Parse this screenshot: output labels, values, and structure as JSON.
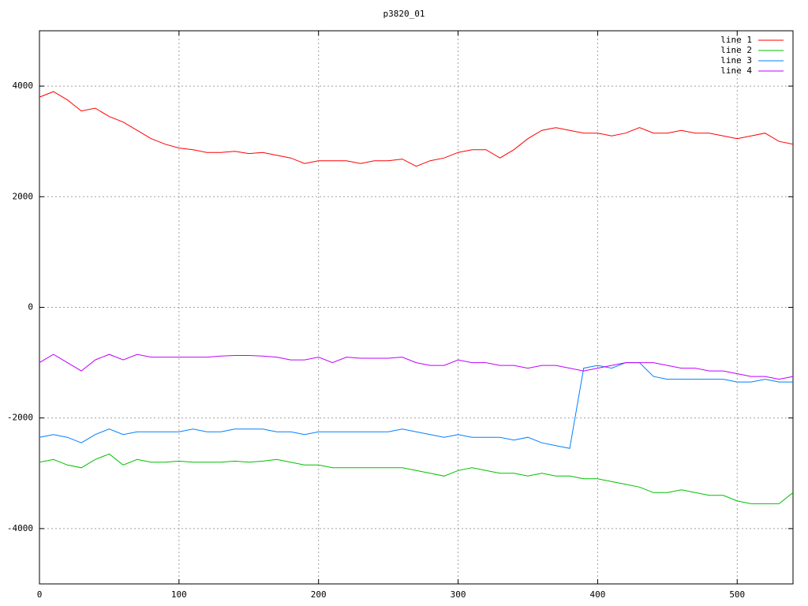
{
  "chart_data": {
    "type": "line",
    "title": "p3820_01",
    "x": [
      0,
      10,
      20,
      30,
      40,
      50,
      60,
      70,
      80,
      90,
      100,
      110,
      120,
      130,
      140,
      150,
      160,
      170,
      180,
      190,
      200,
      210,
      220,
      230,
      240,
      250,
      260,
      270,
      280,
      290,
      300,
      310,
      320,
      330,
      340,
      350,
      360,
      370,
      380,
      390,
      400,
      410,
      420,
      430,
      440,
      450,
      460,
      470,
      480,
      490,
      500,
      510,
      520,
      530,
      540
    ],
    "series": [
      {
        "name": "line 1",
        "color": "#ff0000",
        "values": [
          3800,
          3900,
          3750,
          3550,
          3600,
          3450,
          3350,
          3200,
          3050,
          2950,
          2880,
          2850,
          2800,
          2800,
          2820,
          2780,
          2800,
          2750,
          2700,
          2600,
          2650,
          2650,
          2650,
          2600,
          2650,
          2650,
          2680,
          2550,
          2650,
          2700,
          2800,
          2850,
          2850,
          2700,
          2850,
          3050,
          3200,
          3250,
          3200,
          3150,
          3150,
          3100,
          3150,
          3250,
          3150,
          3150,
          3200,
          3150,
          3150,
          3100,
          3050,
          3100,
          3150,
          3000,
          2950
        ]
      },
      {
        "name": "line 2",
        "color": "#00c000",
        "values": [
          -2800,
          -2750,
          -2850,
          -2900,
          -2750,
          -2650,
          -2850,
          -2750,
          -2800,
          -2800,
          -2780,
          -2800,
          -2800,
          -2800,
          -2780,
          -2800,
          -2780,
          -2750,
          -2800,
          -2850,
          -2850,
          -2900,
          -2900,
          -2900,
          -2900,
          -2900,
          -2900,
          -2950,
          -3000,
          -3050,
          -2950,
          -2900,
          -2950,
          -3000,
          -3000,
          -3050,
          -3000,
          -3050,
          -3050,
          -3100,
          -3100,
          -3150,
          -3200,
          -3250,
          -3350,
          -3350,
          -3300,
          -3350,
          -3400,
          -3400,
          -3500,
          -3550,
          -3550,
          -3550,
          -3350
        ]
      },
      {
        "name": "line 3",
        "color": "#0080ff",
        "values": [
          -2350,
          -2300,
          -2350,
          -2450,
          -2300,
          -2200,
          -2300,
          -2250,
          -2250,
          -2250,
          -2250,
          -2200,
          -2250,
          -2250,
          -2200,
          -2200,
          -2200,
          -2250,
          -2250,
          -2300,
          -2250,
          -2250,
          -2250,
          -2250,
          -2250,
          -2250,
          -2200,
          -2250,
          -2300,
          -2350,
          -2300,
          -2350,
          -2350,
          -2350,
          -2400,
          -2350,
          -2450,
          -2500,
          -2550,
          -1100,
          -1050,
          -1100,
          -1000,
          -1000,
          -1250,
          -1300,
          -1300,
          -1300,
          -1300,
          -1300,
          -1350,
          -1350,
          -1300,
          -1350,
          -1350
        ]
      },
      {
        "name": "line 4",
        "color": "#c000ff",
        "values": [
          -1000,
          -850,
          -1000,
          -1150,
          -950,
          -850,
          -950,
          -850,
          -900,
          -900,
          -900,
          -900,
          -900,
          -880,
          -870,
          -870,
          -880,
          -900,
          -950,
          -950,
          -900,
          -1000,
          -900,
          -920,
          -920,
          -920,
          -900,
          -1000,
          -1050,
          -1050,
          -950,
          -1000,
          -1000,
          -1050,
          -1050,
          -1100,
          -1050,
          -1050,
          -1100,
          -1150,
          -1100,
          -1050,
          -1000,
          -1000,
          -1000,
          -1050,
          -1100,
          -1100,
          -1150,
          -1150,
          -1200,
          -1250,
          -1250,
          -1300,
          -1250
        ]
      }
    ],
    "xlim": [
      0,
      540
    ],
    "xticks": [
      0,
      100,
      200,
      300,
      400,
      500
    ],
    "ylim": [
      -5000,
      5000
    ],
    "yticks": [
      -4000,
      -2000,
      0,
      2000,
      4000
    ],
    "grid": true,
    "legend": "top-right"
  }
}
